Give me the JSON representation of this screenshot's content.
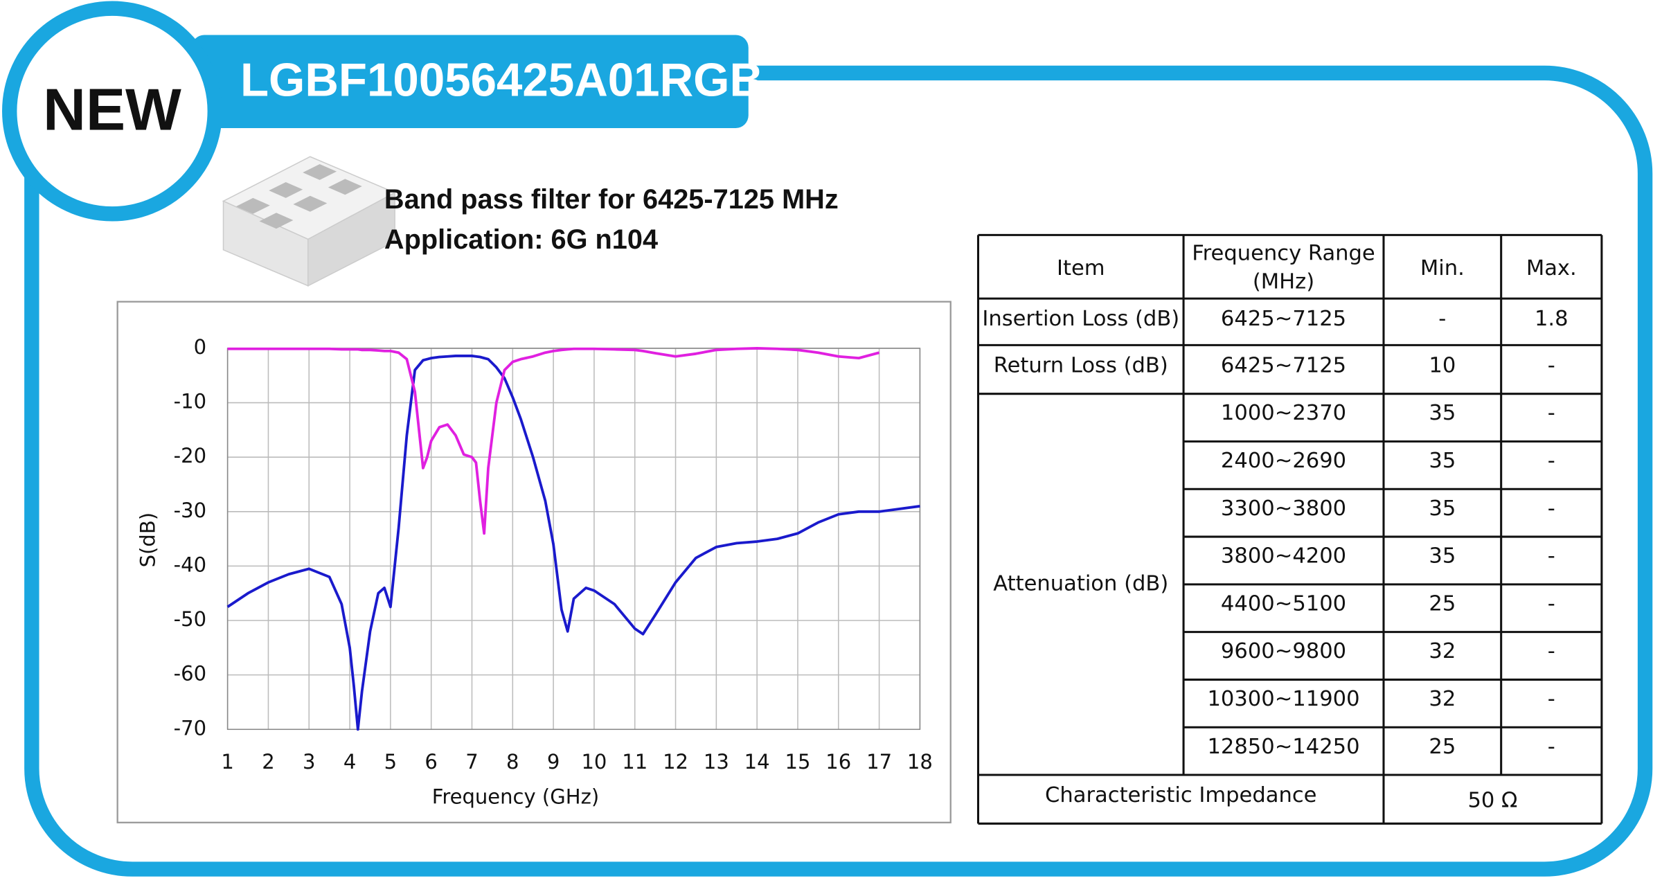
{
  "badge": "NEW",
  "part_number": "LGBF10056425A01RGB",
  "description": [
    "Band pass filter for  6425-7125 MHz",
    "Application: 6G n104"
  ],
  "chart_data": {
    "type": "line",
    "x_label": "Frequency (GHz)",
    "y_label": "S(dB)",
    "x": [
      1,
      1.5,
      2,
      2.5,
      3,
      3.5,
      3.8,
      4.0,
      4.1,
      4.2,
      4.3,
      4.5,
      4.7,
      4.85,
      5.0,
      5.2,
      5.4,
      5.6,
      5.8,
      5.9,
      6.0,
      6.2,
      6.4,
      6.6,
      6.8,
      7.0,
      7.1,
      7.2,
      7.3,
      7.4,
      7.6,
      7.8,
      8.0,
      8.2,
      8.5,
      8.8,
      9.0,
      9.2,
      9.35,
      9.5,
      9.8,
      10.0,
      10.5,
      11.0,
      11.2,
      11.5,
      12.0,
      12.5,
      13.0,
      13.5,
      14.0,
      14.5,
      15.0,
      15.5,
      16.0,
      16.5,
      17.0,
      17.5,
      18.0
    ],
    "series": [
      {
        "color": "#1a1acc",
        "values": [
          -47.5,
          -45,
          -43,
          -41.5,
          -40.5,
          -42,
          -47,
          -55,
          -62,
          -70,
          -63,
          -52,
          -45,
          -44,
          -47.5,
          -33,
          -16,
          -4,
          -2.2,
          -2,
          -1.8,
          -1.6,
          -1.5,
          -1.4,
          -1.4,
          -1.4,
          -1.5,
          -1.6,
          -1.8,
          -2,
          -3.5,
          -5.5,
          -9,
          -13,
          -20,
          -28,
          -36,
          -48,
          -52,
          -46,
          -44,
          -44.5,
          -47,
          -51.5,
          -52.5,
          -49,
          -43,
          -38.5,
          -36.5,
          -35.8,
          -35.5,
          -35,
          -34,
          -32,
          -30.5,
          -30,
          -30,
          -29.5,
          -29
        ]
      },
      {
        "color": "#e020e0",
        "values": [
          -0.1,
          -0.1,
          -0.1,
          -0.1,
          -0.1,
          -0.1,
          -0.2,
          -0.2,
          -0.2,
          -0.2,
          -0.3,
          -0.3,
          -0.4,
          -0.5,
          -0.5,
          -0.8,
          -2,
          -8,
          -22,
          -20,
          -17,
          -14.5,
          -14,
          -16,
          -19.5,
          -20,
          -21,
          -28,
          -34,
          -22,
          -10,
          -4,
          -2.5,
          -2,
          -1.5,
          -0.8,
          -0.5,
          -0.3,
          -0.2,
          -0.1,
          -0.1,
          -0.1,
          -0.2,
          -0.3,
          -0.5,
          -0.9,
          -1.5,
          -1,
          -0.3,
          -0.1,
          0,
          -0.1,
          -0.3,
          -0.8,
          -1.5,
          -1.8,
          -0.8,
          null,
          null
        ]
      }
    ],
    "xlim": [
      1,
      18
    ],
    "xticks": [
      1,
      2,
      3,
      4,
      5,
      6,
      7,
      8,
      9,
      10,
      11,
      12,
      13,
      14,
      15,
      16,
      17,
      18
    ],
    "ylim": [
      -70,
      0
    ],
    "yticks": [
      0,
      -10,
      -20,
      -30,
      -40,
      -50,
      -60,
      -70
    ],
    "grid": true
  },
  "table": {
    "header": [
      "Item",
      [
        "Frequency Range",
        "(MHz)"
      ],
      "Min.",
      "Max."
    ],
    "rows": [
      [
        "Insertion Loss (dB)",
        "6425~7125",
        "-",
        "1.8"
      ],
      [
        "Return Loss (dB)",
        "6425~7125",
        "10",
        "-"
      ]
    ],
    "attenuation": {
      "item": "Attenuation (dB)",
      "rows": [
        [
          "1000~2370",
          "35",
          "-"
        ],
        [
          "2400~2690",
          "35",
          "-"
        ],
        [
          "3300~3800",
          "35",
          "-"
        ],
        [
          "3800~4200",
          "35",
          "-"
        ],
        [
          "4400~5100",
          "25",
          "-"
        ],
        [
          "9600~9800",
          "32",
          "-"
        ],
        [
          "10300~11900",
          "32",
          "-"
        ],
        [
          "12850~14250",
          "25",
          "-"
        ]
      ]
    },
    "impedance": {
      "item": "Characteristic Impedance",
      "value": "50 Ω"
    }
  }
}
